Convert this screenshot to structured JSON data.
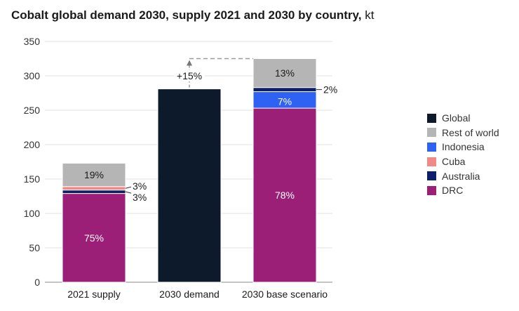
{
  "title": "Cobalt global demand 2030, supply 2021 and 2030 by country,",
  "unit": "kt",
  "colors": {
    "Global": "#0c1a2b",
    "Rest of world": "#b5b5b5",
    "Indonesia": "#2f62f2",
    "Cuba": "#f08a86",
    "Australia": "#0d1f6b",
    "DRC": "#9c1f77"
  },
  "legend": [
    "Global",
    "Rest of world",
    "Indonesia",
    "Cuba",
    "Australia",
    "DRC"
  ],
  "chart_data": {
    "type": "bar",
    "stacked": true,
    "title": "Cobalt global demand 2030, supply 2021 and 2030 by country, kt",
    "ylim": [
      0,
      350
    ],
    "yticks": [
      0,
      50,
      100,
      150,
      200,
      250,
      300,
      350
    ],
    "categories": [
      "2021 supply",
      "2030 demand",
      "2030 base scenario"
    ],
    "bars": [
      {
        "category": "2021 supply",
        "segments": [
          {
            "series": "DRC",
            "value": 129,
            "label": "75%"
          },
          {
            "series": "Australia",
            "value": 5,
            "label": "3%"
          },
          {
            "series": "Cuba",
            "value": 5,
            "label": "3%"
          },
          {
            "series": "Rest of world",
            "value": 34,
            "label": "19%"
          }
        ]
      },
      {
        "category": "2030 demand",
        "segments": [
          {
            "series": "Global",
            "value": 281,
            "label": ""
          }
        ]
      },
      {
        "category": "2030 base scenario",
        "segments": [
          {
            "series": "DRC",
            "value": 253,
            "label": "78%"
          },
          {
            "series": "Indonesia",
            "value": 24,
            "label": "7%"
          },
          {
            "series": "Australia",
            "value": 6,
            "label": "2%"
          },
          {
            "series": "Rest of world",
            "value": 42,
            "label": "13%"
          }
        ]
      }
    ],
    "annotation": {
      "text": "+15%",
      "from_category": "2030 demand",
      "to_category": "2030 base scenario"
    },
    "legend_position": "right"
  }
}
